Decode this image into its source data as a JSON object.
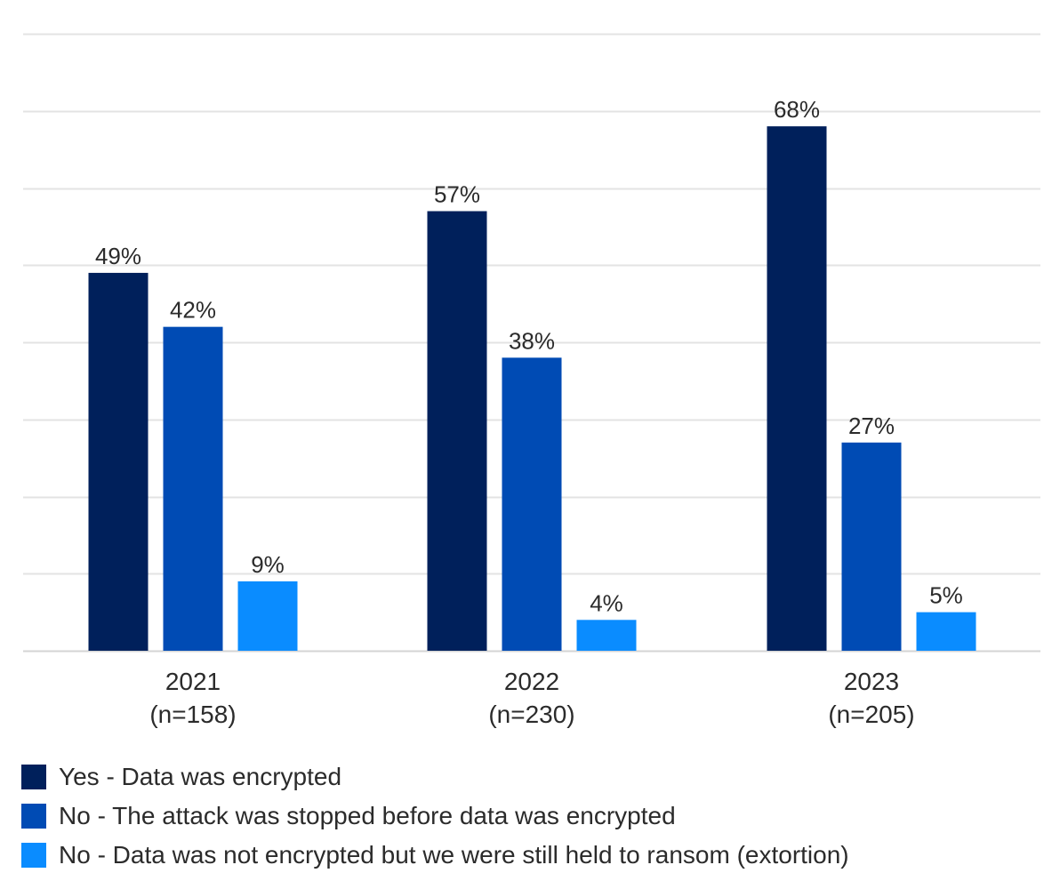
{
  "chart_data": {
    "type": "bar",
    "title": "",
    "xlabel": "",
    "ylabel": "",
    "ylim": [
      0,
      80
    ],
    "grid": true,
    "legend_position": "bottom",
    "categories": [
      "2021",
      "2022",
      "2023"
    ],
    "category_subtitles": [
      "(n=158)",
      "(n=230)",
      "(n=205)"
    ],
    "value_suffix": "%",
    "series": [
      {
        "name": "Yes - Data was encrypted",
        "color": "#00205b",
        "values": [
          49,
          57,
          68
        ]
      },
      {
        "name": "No - The attack was stopped before data was encrypted",
        "color": "#004bb4",
        "values": [
          42,
          38,
          27
        ]
      },
      {
        "name": "No - Data was not encrypted but we were still held to ransom (extortion)",
        "color": "#0a8cff",
        "values": [
          9,
          4,
          5
        ]
      }
    ]
  }
}
